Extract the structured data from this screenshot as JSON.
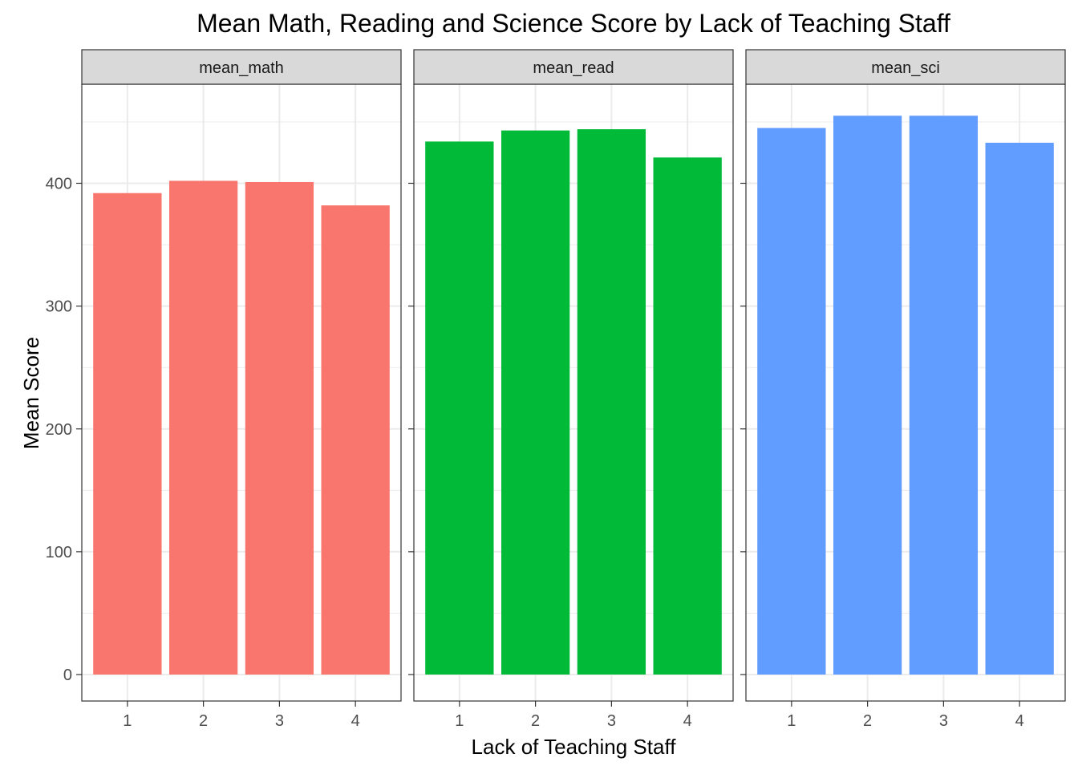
{
  "chart_data": {
    "type": "bar",
    "title": "Mean Math, Reading and Science Score by Lack of Teaching Staff",
    "xlabel": "Lack of Teaching Staff",
    "ylabel": "Mean Score",
    "categories": [
      "1",
      "2",
      "3",
      "4"
    ],
    "ylim": [
      0,
      480
    ],
    "yticks": [
      0,
      100,
      200,
      300,
      400
    ],
    "grid": true,
    "legend": "none",
    "facets": [
      {
        "name": "mean_math",
        "color": "#F8766D",
        "values": [
          392,
          402,
          401,
          382
        ]
      },
      {
        "name": "mean_read",
        "color": "#00BA38",
        "values": [
          434,
          443,
          444,
          421
        ]
      },
      {
        "name": "mean_sci",
        "color": "#619CFF",
        "values": [
          445,
          455,
          455,
          433
        ]
      }
    ]
  }
}
